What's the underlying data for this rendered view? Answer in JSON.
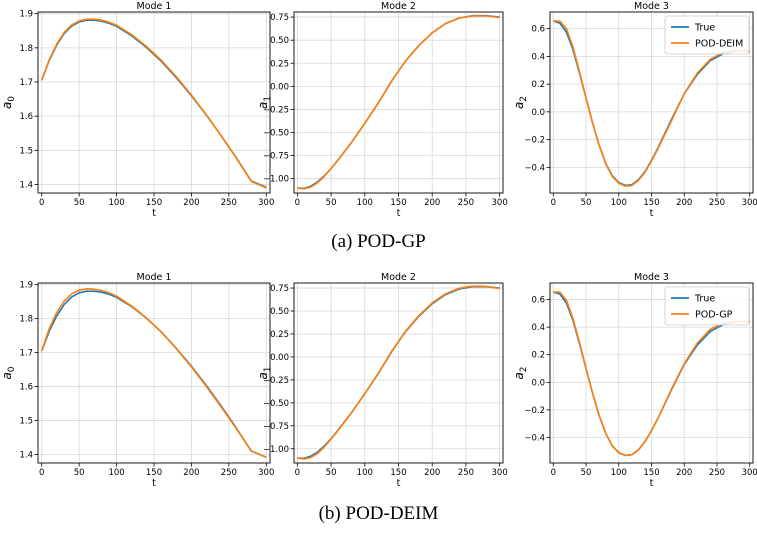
{
  "captions": {
    "a": "(a) POD-GP",
    "b": "(b) POD-DEIM"
  },
  "colors": {
    "true": "#1f77b4",
    "approx": "#ff7f0e",
    "grid": "#d9d9d9"
  },
  "chart_data": [
    {
      "type": "line",
      "row": 0,
      "col": 0,
      "title": "Mode 1",
      "xlabel": "t",
      "ylabel": "a_0",
      "xlim": [
        -5,
        305
      ],
      "ylim": [
        1.375,
        1.905
      ],
      "xticks": [
        0,
        50,
        100,
        150,
        200,
        250,
        300
      ],
      "yticks": [
        1.4,
        1.5,
        1.6,
        1.7,
        1.8,
        1.9
      ],
      "ytick_labels": [
        "1.4",
        "1.5",
        "1.6",
        "1.7",
        "1.8",
        "1.9"
      ],
      "legend": null,
      "series": [
        {
          "role": "true",
          "x": [
            0,
            10,
            20,
            30,
            40,
            50,
            60,
            70,
            80,
            90,
            100,
            120,
            140,
            160,
            180,
            200,
            220,
            240,
            260,
            280,
            300
          ],
          "y": [
            1.705,
            1.763,
            1.808,
            1.842,
            1.864,
            1.876,
            1.881,
            1.881,
            1.878,
            1.872,
            1.863,
            1.836,
            1.801,
            1.76,
            1.712,
            1.66,
            1.603,
            1.542,
            1.478,
            1.41,
            1.392
          ]
        },
        {
          "role": "approx",
          "x": [
            0,
            10,
            20,
            30,
            40,
            50,
            60,
            70,
            80,
            90,
            100,
            120,
            140,
            160,
            180,
            200,
            220,
            240,
            260,
            280,
            300
          ],
          "y": [
            1.705,
            1.765,
            1.811,
            1.845,
            1.867,
            1.879,
            1.884,
            1.884,
            1.881,
            1.875,
            1.866,
            1.839,
            1.804,
            1.763,
            1.715,
            1.662,
            1.604,
            1.542,
            1.477,
            1.409,
            1.39
          ]
        }
      ]
    },
    {
      "type": "line",
      "row": 0,
      "col": 1,
      "title": "Mode 2",
      "xlabel": "t",
      "ylabel": "a_1",
      "xlim": [
        -5,
        305
      ],
      "ylim": [
        -1.155,
        0.805
      ],
      "xticks": [
        0,
        50,
        100,
        150,
        200,
        250,
        300
      ],
      "yticks": [
        -1.0,
        -0.75,
        -0.5,
        -0.25,
        0.0,
        0.25,
        0.5,
        0.75
      ],
      "ytick_labels": [
        "−1.00",
        "−0.75",
        "−0.50",
        "−0.25",
        "0.00",
        "0.25",
        "0.50",
        "0.75"
      ],
      "legend": null,
      "series": [
        {
          "role": "true",
          "x": [
            0,
            10,
            20,
            30,
            40,
            50,
            60,
            80,
            100,
            120,
            140,
            160,
            180,
            200,
            220,
            240,
            260,
            280,
            300
          ],
          "y": [
            -1.1,
            -1.105,
            -1.08,
            -1.035,
            -0.97,
            -0.89,
            -0.8,
            -0.61,
            -0.4,
            -0.18,
            0.06,
            0.27,
            0.44,
            0.58,
            0.68,
            0.74,
            0.765,
            0.765,
            0.75
          ]
        },
        {
          "role": "approx",
          "x": [
            0,
            10,
            20,
            30,
            40,
            50,
            60,
            80,
            100,
            120,
            140,
            160,
            180,
            200,
            220,
            240,
            260,
            280,
            300
          ],
          "y": [
            -1.1,
            -1.11,
            -1.09,
            -1.045,
            -0.975,
            -0.89,
            -0.8,
            -0.61,
            -0.4,
            -0.18,
            0.06,
            0.27,
            0.44,
            0.58,
            0.68,
            0.74,
            0.762,
            0.762,
            0.745
          ]
        }
      ]
    },
    {
      "type": "line",
      "row": 0,
      "col": 2,
      "title": "Mode 3",
      "xlabel": "t",
      "ylabel": "a_2",
      "xlim": [
        -5,
        305
      ],
      "ylim": [
        -0.585,
        0.72
      ],
      "xticks": [
        0,
        50,
        100,
        150,
        200,
        250,
        300
      ],
      "yticks": [
        -0.4,
        -0.2,
        0.0,
        0.2,
        0.4,
        0.6
      ],
      "ytick_labels": [
        "−0.4",
        "−0.2",
        "0.0",
        "0.2",
        "0.4",
        "0.6"
      ],
      "legend": [
        "True",
        "POD-DEIM"
      ],
      "series": [
        {
          "role": "true",
          "x": [
            0,
            10,
            20,
            30,
            40,
            50,
            60,
            70,
            80,
            90,
            100,
            110,
            120,
            130,
            140,
            150,
            160,
            180,
            200,
            220,
            240,
            260,
            280,
            300
          ],
          "y": [
            0.655,
            0.64,
            0.575,
            0.45,
            0.28,
            0.1,
            -0.08,
            -0.24,
            -0.37,
            -0.46,
            -0.51,
            -0.53,
            -0.525,
            -0.49,
            -0.43,
            -0.35,
            -0.26,
            -0.06,
            0.13,
            0.27,
            0.37,
            0.42,
            0.44,
            0.44
          ]
        },
        {
          "role": "approx",
          "x": [
            0,
            10,
            20,
            30,
            40,
            50,
            60,
            70,
            80,
            90,
            100,
            110,
            120,
            130,
            140,
            150,
            160,
            180,
            200,
            220,
            240,
            260,
            280,
            300
          ],
          "y": [
            0.655,
            0.655,
            0.6,
            0.47,
            0.29,
            0.1,
            -0.08,
            -0.24,
            -0.375,
            -0.465,
            -0.515,
            -0.535,
            -0.53,
            -0.495,
            -0.435,
            -0.355,
            -0.265,
            -0.07,
            0.13,
            0.28,
            0.38,
            0.43,
            0.445,
            0.43
          ]
        }
      ]
    },
    {
      "type": "line",
      "row": 1,
      "col": 0,
      "title": "Mode 1",
      "xlabel": "t",
      "ylabel": "a_0",
      "xlim": [
        -5,
        305
      ],
      "ylim": [
        1.375,
        1.905
      ],
      "xticks": [
        0,
        50,
        100,
        150,
        200,
        250,
        300
      ],
      "yticks": [
        1.4,
        1.5,
        1.6,
        1.7,
        1.8,
        1.9
      ],
      "ytick_labels": [
        "1.4",
        "1.5",
        "1.6",
        "1.7",
        "1.8",
        "1.9"
      ],
      "legend": null,
      "series": [
        {
          "role": "true",
          "x": [
            0,
            10,
            20,
            30,
            40,
            50,
            60,
            70,
            80,
            90,
            100,
            120,
            140,
            160,
            180,
            200,
            220,
            240,
            260,
            280,
            300
          ],
          "y": [
            1.705,
            1.763,
            1.808,
            1.842,
            1.864,
            1.876,
            1.881,
            1.881,
            1.878,
            1.872,
            1.863,
            1.836,
            1.801,
            1.76,
            1.712,
            1.66,
            1.603,
            1.542,
            1.478,
            1.41,
            1.392
          ]
        },
        {
          "role": "approx",
          "x": [
            0,
            10,
            20,
            30,
            40,
            50,
            60,
            70,
            80,
            90,
            100,
            120,
            140,
            160,
            180,
            200,
            220,
            240,
            260,
            280,
            300
          ],
          "y": [
            1.705,
            1.77,
            1.818,
            1.852,
            1.873,
            1.884,
            1.888,
            1.887,
            1.883,
            1.876,
            1.866,
            1.838,
            1.802,
            1.76,
            1.711,
            1.658,
            1.6,
            1.539,
            1.476,
            1.41,
            1.392
          ]
        }
      ]
    },
    {
      "type": "line",
      "row": 1,
      "col": 1,
      "title": "Mode 2",
      "xlabel": "t",
      "ylabel": "a_1",
      "xlim": [
        -5,
        305
      ],
      "ylim": [
        -1.155,
        0.805
      ],
      "xticks": [
        0,
        50,
        100,
        150,
        200,
        250,
        300
      ],
      "yticks": [
        -1.0,
        -0.75,
        -0.5,
        -0.25,
        0.0,
        0.25,
        0.5,
        0.75
      ],
      "ytick_labels": [
        "−1.00",
        "−0.75",
        "−0.50",
        "−0.25",
        "0.00",
        "0.25",
        "0.50",
        "0.75"
      ],
      "legend": null,
      "series": [
        {
          "role": "true",
          "x": [
            0,
            10,
            20,
            30,
            40,
            50,
            60,
            80,
            100,
            120,
            140,
            160,
            180,
            200,
            220,
            240,
            260,
            280,
            300
          ],
          "y": [
            -1.1,
            -1.105,
            -1.08,
            -1.035,
            -0.97,
            -0.89,
            -0.8,
            -0.61,
            -0.4,
            -0.18,
            0.06,
            0.27,
            0.44,
            0.58,
            0.68,
            0.74,
            0.765,
            0.765,
            0.75
          ]
        },
        {
          "role": "approx",
          "x": [
            0,
            10,
            20,
            30,
            40,
            50,
            60,
            80,
            100,
            120,
            140,
            160,
            180,
            200,
            220,
            240,
            260,
            280,
            300
          ],
          "y": [
            -1.1,
            -1.112,
            -1.095,
            -1.05,
            -0.98,
            -0.895,
            -0.805,
            -0.612,
            -0.4,
            -0.178,
            0.065,
            0.275,
            0.448,
            0.588,
            0.688,
            0.748,
            0.77,
            0.768,
            0.745
          ]
        }
      ]
    },
    {
      "type": "line",
      "row": 1,
      "col": 2,
      "title": "Mode 3",
      "xlabel": "t",
      "ylabel": "a_2",
      "xlim": [
        -5,
        305
      ],
      "ylim": [
        -0.585,
        0.72
      ],
      "xticks": [
        0,
        50,
        100,
        150,
        200,
        250,
        300
      ],
      "yticks": [
        -0.4,
        -0.2,
        0.0,
        0.2,
        0.4,
        0.6
      ],
      "ytick_labels": [
        "−0.4",
        "−0.2",
        "0.0",
        "0.2",
        "0.4",
        "0.6"
      ],
      "legend": [
        "True",
        "POD-GP"
      ],
      "series": [
        {
          "role": "true",
          "x": [
            0,
            10,
            20,
            30,
            40,
            50,
            60,
            70,
            80,
            90,
            100,
            110,
            120,
            130,
            140,
            150,
            160,
            180,
            200,
            220,
            240,
            260,
            280,
            300
          ],
          "y": [
            0.655,
            0.64,
            0.575,
            0.45,
            0.28,
            0.1,
            -0.08,
            -0.24,
            -0.37,
            -0.46,
            -0.51,
            -0.53,
            -0.525,
            -0.49,
            -0.43,
            -0.35,
            -0.26,
            -0.06,
            0.13,
            0.27,
            0.37,
            0.42,
            0.44,
            0.44
          ]
        },
        {
          "role": "approx",
          "x": [
            0,
            10,
            20,
            30,
            40,
            50,
            60,
            70,
            80,
            90,
            100,
            110,
            120,
            130,
            140,
            150,
            160,
            180,
            200,
            220,
            240,
            260,
            280,
            300
          ],
          "y": [
            0.655,
            0.655,
            0.595,
            0.465,
            0.29,
            0.1,
            -0.08,
            -0.24,
            -0.37,
            -0.46,
            -0.51,
            -0.53,
            -0.525,
            -0.49,
            -0.43,
            -0.35,
            -0.26,
            -0.055,
            0.135,
            0.285,
            0.385,
            0.43,
            0.44,
            0.435
          ]
        }
      ]
    }
  ]
}
